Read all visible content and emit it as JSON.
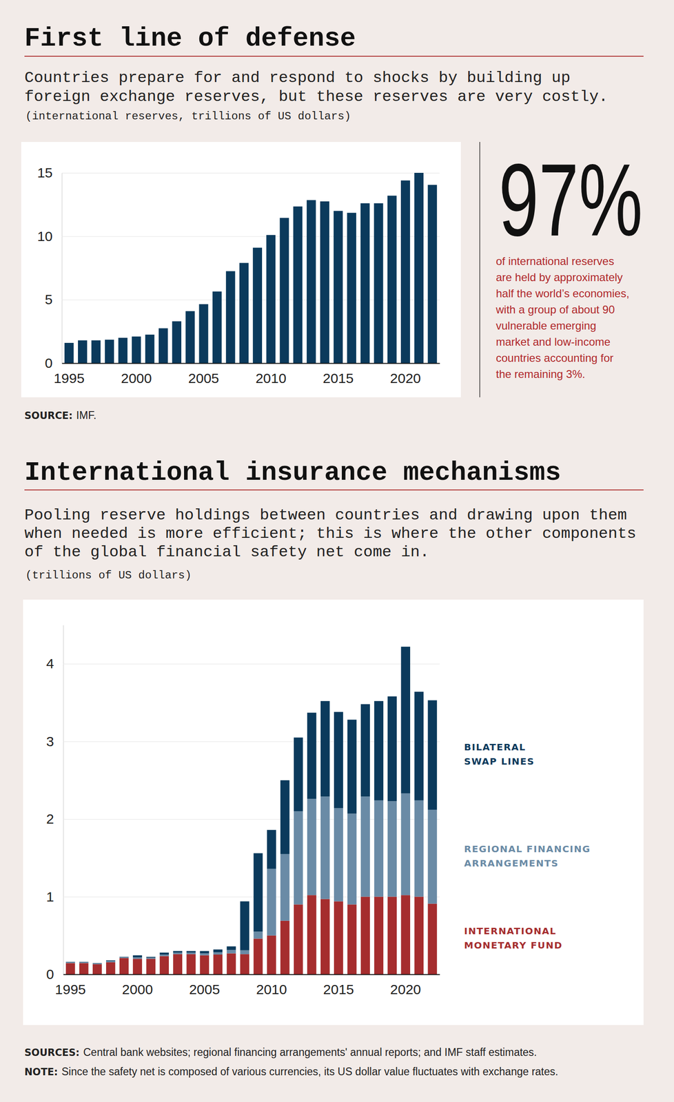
{
  "chart_data": [
    {
      "type": "bar",
      "title": "First line of defense",
      "subtitle": [
        "Countries prepare for and respond to shocks by building up",
        "foreign exchange reserves, but these reserves are very costly."
      ],
      "units": "(international reserves, trillions of US dollars)",
      "categories": [
        "1995",
        null,
        null,
        null,
        null,
        "2000",
        null,
        null,
        null,
        null,
        "2005",
        null,
        null,
        null,
        null,
        "2010",
        null,
        null,
        null,
        null,
        "2015",
        null,
        null,
        null,
        null,
        "2020",
        null,
        null
      ],
      "values": [
        1.6,
        1.8,
        1.8,
        1.85,
        2.0,
        2.1,
        2.25,
        2.75,
        3.3,
        4.1,
        4.65,
        5.65,
        7.25,
        7.9,
        9.1,
        10.1,
        11.45,
        12.35,
        12.85,
        12.75,
        12.0,
        11.85,
        12.6,
        12.6,
        13.2,
        14.4,
        15.0,
        14.05
      ],
      "color": "#0b3a5c",
      "ylim": [
        0,
        15
      ],
      "yticks": [
        0,
        5,
        10,
        15
      ],
      "grid": true,
      "callout": {
        "label": "97%",
        "text": [
          "of international reserves",
          "are held by approximately",
          "half the world’s economies,",
          "with a group of about 90",
          "vulnerable emerging",
          "market and low-income",
          "countries accounting for",
          "the remaining 3%."
        ]
      },
      "source": {
        "label": "SOURCE:",
        "text": "IMF."
      }
    },
    {
      "type": "bar",
      "stacked": true,
      "title": "International insurance mechanisms",
      "subtitle": [
        "Pooling reserve holdings between countries and drawing upon them",
        "when needed is more efficient; this is where the other components",
        "of the global financial safety net come in."
      ],
      "units": "(trillions of US dollars)",
      "categories": [
        "1995",
        null,
        null,
        null,
        null,
        "2000",
        null,
        null,
        null,
        null,
        "2005",
        null,
        null,
        null,
        null,
        "2010",
        null,
        null,
        null,
        null,
        "2015",
        null,
        null,
        null,
        null,
        "2020",
        null,
        null
      ],
      "series": [
        {
          "name": "INTERNATIONAL MONETARY FUND",
          "color": "#a52d2e",
          "values": [
            0.145,
            0.145,
            0.13,
            0.155,
            0.21,
            0.2,
            0.2,
            0.235,
            0.26,
            0.26,
            0.245,
            0.255,
            0.27,
            0.26,
            0.46,
            0.5,
            0.69,
            0.9,
            1.02,
            0.97,
            0.94,
            0.9,
            1.0,
            1.0,
            1.0,
            1.02,
            1.0,
            0.91
          ]
        },
        {
          "name": "REGIONAL FINANCING ARRANGEMENTS",
          "color": "#6a8ba6",
          "values": [
            0.01,
            0.01,
            0.01,
            0.015,
            0.01,
            0.02,
            0.015,
            0.02,
            0.02,
            0.02,
            0.025,
            0.03,
            0.045,
            0.05,
            0.09,
            0.86,
            0.86,
            1.2,
            1.24,
            1.32,
            1.2,
            1.17,
            1.29,
            1.24,
            1.23,
            1.31,
            1.24,
            1.21
          ]
        },
        {
          "name": "BILATERAL SWAP LINES",
          "color": "#0b3a5c",
          "values": [
            0.005,
            0.005,
            0.005,
            0.01,
            0.005,
            0.025,
            0.01,
            0.025,
            0.02,
            0.02,
            0.03,
            0.035,
            0.045,
            0.63,
            1.01,
            0.5,
            0.95,
            0.95,
            1.11,
            1.23,
            1.24,
            1.21,
            1.19,
            1.28,
            1.35,
            1.89,
            1.4,
            1.41
          ]
        }
      ],
      "ylim": [
        0,
        4.5
      ],
      "yticks": [
        0,
        1,
        2,
        3,
        4
      ],
      "grid": true,
      "legend": "right",
      "source": {
        "label": "SOURCES:",
        "text": "Central bank websites; regional financing arrangements' annual reports; and IMF staff estimates."
      },
      "note": {
        "label": "NOTE:",
        "text": "Since the safety net is composed of various currencies, its US dollar value fluctuates with exchange rates."
      }
    }
  ]
}
